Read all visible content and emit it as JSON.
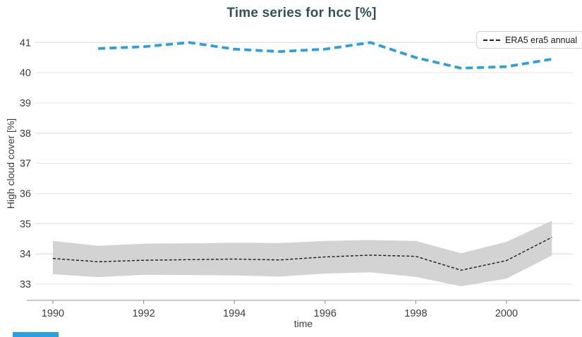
{
  "chart_data": {
    "type": "line",
    "title": "Time series for hcc [%]",
    "xlabel": "time",
    "ylabel": "High cloud cover [%]",
    "xticks": [
      1990,
      1992,
      1994,
      1996,
      1998,
      2000
    ],
    "yticks": [
      33,
      34,
      35,
      36,
      37,
      38,
      39,
      40,
      41
    ],
    "xlim": [
      1989.6,
      2001.5
    ],
    "ylim": [
      32.5,
      41.5
    ],
    "grid": "horizontal-only",
    "legend": {
      "position": "top-right",
      "entries": [
        {
          "label": "ERA5 era5 annual",
          "style": "black-dashed"
        }
      ]
    },
    "series": [
      {
        "name": "ERA5 era5 annual",
        "style": "dashed",
        "color": "#1a1a1a",
        "x": [
          1990,
          1991,
          1992,
          1993,
          1994,
          1995,
          1996,
          1997,
          1998,
          1999,
          2000,
          2001
        ],
        "values": [
          33.85,
          33.74,
          33.79,
          33.81,
          33.83,
          33.8,
          33.9,
          33.96,
          33.92,
          33.46,
          33.78,
          34.55
        ],
        "band": {
          "color": "#d3d3d3",
          "upper": [
            34.43,
            34.27,
            34.34,
            34.35,
            34.37,
            34.36,
            34.43,
            34.46,
            34.43,
            34.02,
            34.4,
            35.1
          ],
          "lower": [
            33.33,
            33.23,
            33.31,
            33.3,
            33.29,
            33.25,
            33.35,
            33.39,
            33.24,
            32.93,
            33.18,
            33.95
          ]
        }
      },
      {
        "name": "unlabeled",
        "style": "dashed",
        "color": "#2ba0e0",
        "x": [
          1991,
          1992,
          1993,
          1994,
          1995,
          1996,
          1997,
          1998,
          1999,
          2000,
          2001
        ],
        "values": [
          40.8,
          40.86,
          41.0,
          40.78,
          40.7,
          40.78,
          41.0,
          40.5,
          40.15,
          40.2,
          40.45
        ]
      }
    ]
  },
  "colors": {
    "title": "#30535b",
    "grid": "#e5e5e5",
    "axis_spine": "#cbcbcb",
    "tick_mark": "#9a9a9a",
    "tick_text": "#3d3d3d",
    "band": "#d3d3d3",
    "series_black": "#1a1a1a",
    "series_blue": "#2ba0e0",
    "bottom_bar": "#2ba0e0"
  },
  "decorations": {
    "bottom_blue_bar": {
      "visible": true
    }
  }
}
